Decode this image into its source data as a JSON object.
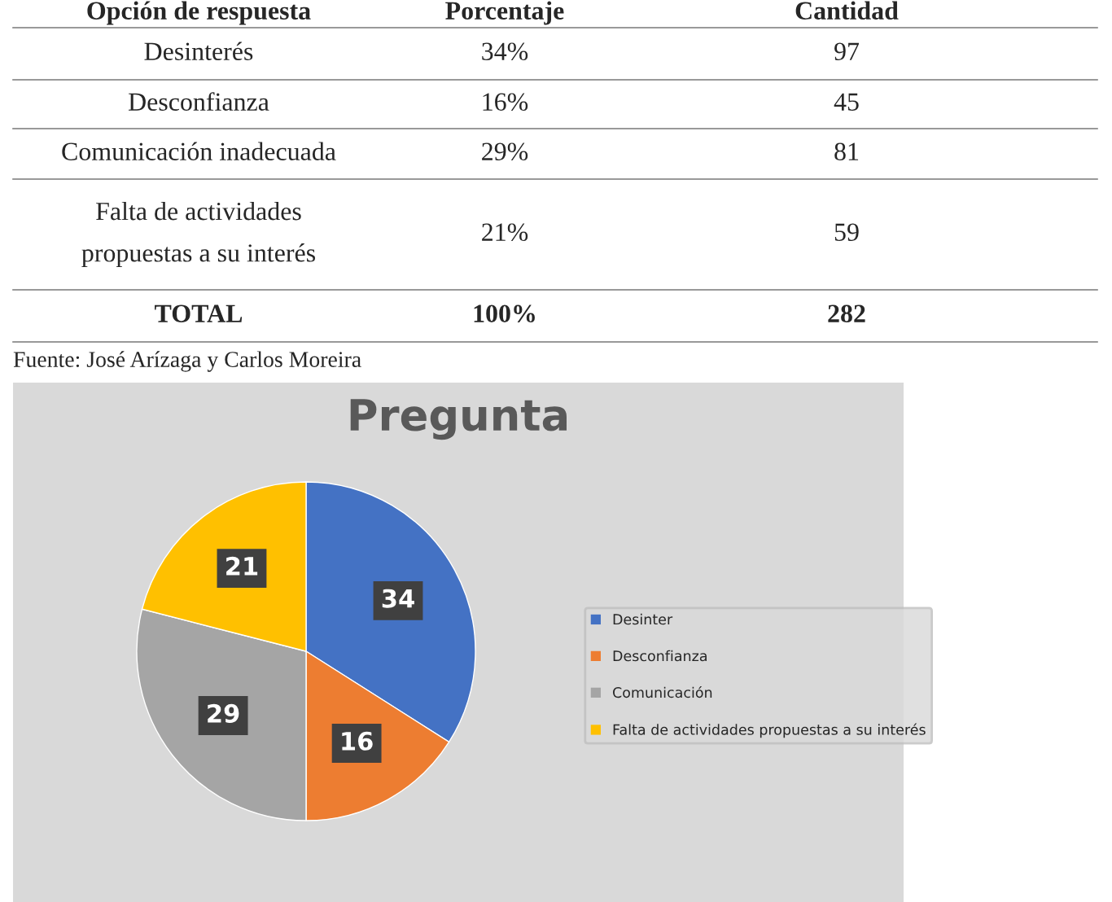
{
  "chart_data": [
    {
      "type": "other",
      "annotations": [
        "Opción de respuesta",
        "Porcentaje",
        "Cantidad",
        "Desinterés",
        "34%",
        "97",
        "Desconfianza",
        "16%",
        "45",
        "Comunicación inadecuada",
        "29%",
        "81",
        "Falta de actividades\npropuestas a su interés",
        "21%",
        "59",
        "TOTAL",
        "100%",
        "282",
        "Fuente: José Arízaga y Carlos Moreira"
      ]
    },
    {
      "type": "pie",
      "title": "Pregunta",
      "categories": [
        "Desinter",
        "Desconfianza",
        "Comunicación",
        "Falta de actividades propuestas a su interés"
      ],
      "values": [
        34,
        16,
        29,
        21
      ],
      "colors": [
        "#4472c4",
        "#ed7d31",
        "#a5a5a5",
        "#ffc000"
      ],
      "data_labels": true,
      "legend": "right"
    }
  ]
}
